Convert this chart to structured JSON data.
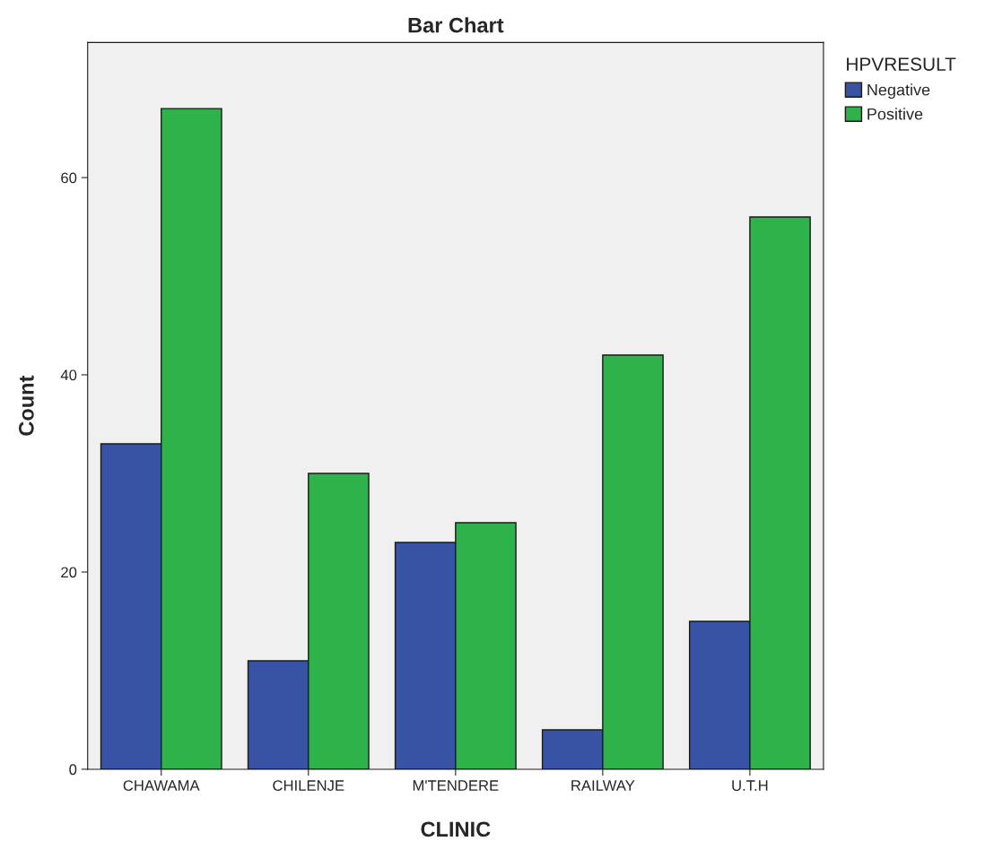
{
  "chart_data": {
    "type": "bar",
    "title": "Bar Chart",
    "xlabel": "CLINIC",
    "ylabel": "Count",
    "legend_title": "HPVRESULT",
    "categories": [
      "CHAWAMA",
      "CHILENJE",
      "M'TENDERE",
      "RAILWAY",
      "U.T.H"
    ],
    "series": [
      {
        "name": "Negative",
        "color": "#3953a4",
        "values": [
          33,
          11,
          23,
          4,
          15
        ]
      },
      {
        "name": "Positive",
        "color": "#2db34a",
        "values": [
          67,
          30,
          25,
          42,
          56
        ]
      }
    ],
    "ylim": [
      0,
      73.7
    ],
    "yticks": [
      0,
      20,
      40,
      60
    ],
    "grid": false,
    "legend": "top right"
  }
}
